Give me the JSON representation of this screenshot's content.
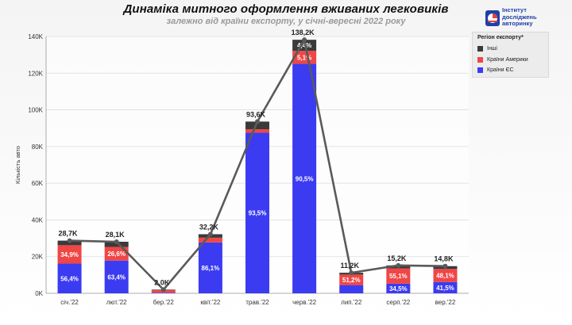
{
  "header": {
    "title": "Динаміка митного оформлення вживаних легковиків",
    "subtitle": "залежно від країни експорту, у січні-вересні 2022 року"
  },
  "logo": {
    "line1": "Інститут",
    "line2": "досліджень",
    "line3": "авторинку",
    "colors": {
      "primary": "#1f3fa8",
      "accent": "#e8413c"
    }
  },
  "legend": {
    "title": "Регіон експорту*",
    "items": [
      {
        "label": "Інші",
        "color": "#3a3a3a"
      },
      {
        "label": "Країни Америки",
        "color": "#f04646"
      },
      {
        "label": "Країни ЄС",
        "color": "#3b3bf2"
      }
    ]
  },
  "chart_data": {
    "type": "bar",
    "stacked": true,
    "title": "Динаміка митного оформлення вживаних легковиків",
    "subtitle": "залежно від країни експорту, у січні-вересні 2022 року",
    "xlabel": "",
    "ylabel": "Кількість авто",
    "ylim": [
      0,
      140000
    ],
    "yticks": [
      0,
      20000,
      40000,
      60000,
      80000,
      100000,
      120000,
      140000
    ],
    "ytick_labels": [
      "0K",
      "20K",
      "40K",
      "60K",
      "80K",
      "100K",
      "120K",
      "140K"
    ],
    "categories": [
      "січ.'22",
      "лют.'22",
      "бер.'22",
      "квіт.'22",
      "трав.'22",
      "черв.'22",
      "лип.'22",
      "серп.'22",
      "вер.'22"
    ],
    "totals": [
      28700,
      28100,
      2000,
      32200,
      93600,
      138200,
      11200,
      15200,
      14800
    ],
    "total_labels": [
      "28,7K",
      "28,1K",
      "2,0K",
      "32,2K",
      "93,6K",
      "138,2K",
      "11,2K",
      "15,2K",
      "14,8K"
    ],
    "series": [
      {
        "name": "Країни ЄС",
        "color": "#3b3bf2",
        "share": [
          56.4,
          63.4,
          15,
          86.1,
          93.5,
          90.5,
          40,
          34.5,
          41.5
        ],
        "labels": [
          "56,4%",
          "63,4%",
          "",
          "86,1%",
          "93,5%",
          "90,5%",
          "",
          "34,5%",
          "41,5%"
        ]
      },
      {
        "name": "Країни Америки",
        "color": "#f04646",
        "share": [
          34.9,
          26.6,
          70,
          8,
          2,
          5.1,
          51.2,
          55.1,
          48.1
        ],
        "labels": [
          "34,9%",
          "26,6%",
          "",
          "",
          "",
          "5,1%",
          "51,2%",
          "55,1%",
          "48,1%"
        ]
      },
      {
        "name": "Інші",
        "color": "#3a3a3a",
        "share": [
          8.7,
          10.0,
          15,
          5.9,
          4.5,
          4.4,
          8.8,
          10.4,
          10.4
        ],
        "labels": [
          "",
          "",
          "",
          "",
          "",
          "4,4%",
          "",
          "",
          ""
        ]
      }
    ],
    "line_color": "#5a5a5a",
    "grid": true,
    "legend_position": "top-right"
  }
}
